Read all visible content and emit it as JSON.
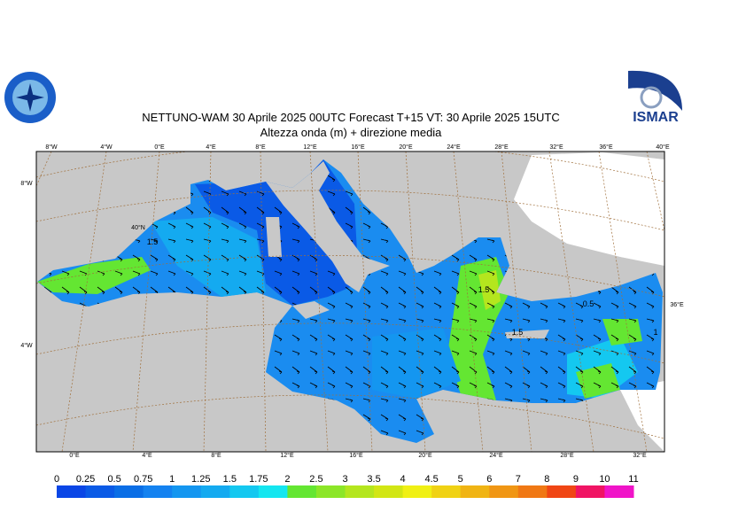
{
  "header": {
    "title": "NETTUNO-WAM  30   Aprile  2025 00UTC Forecast T+15 VT: 30   Aprile  2025 15UTC",
    "subtitle": "Altezza onda (m) + direzione media",
    "logo_right": "ISMAR"
  },
  "graticule": {
    "top": [
      "8°W",
      "4°W",
      "0°E",
      "4°E",
      "8°E",
      "12°E",
      "16°E",
      "20°E",
      "24°E",
      "28°E",
      "32°E",
      "36°E",
      "40°E"
    ],
    "bottom": [
      "0°E",
      "4°E",
      "8°E",
      "12°E",
      "16°E",
      "20°E",
      "24°E",
      "28°E",
      "32°E"
    ],
    "left": [
      "8°W",
      "40°N",
      "4°W"
    ],
    "right": [
      "36°E"
    ]
  },
  "contour_labels": [
    "1.5",
    "1.5",
    "0.5",
    "1.5",
    "1"
  ],
  "legend": {
    "levels": [
      0,
      0.25,
      0.5,
      0.75,
      1,
      1.25,
      1.5,
      1.75,
      2,
      2.5,
      3,
      3.5,
      4,
      4.5,
      5,
      6,
      7,
      8,
      9,
      10,
      11
    ],
    "colors": [
      "#0a46e6",
      "#0a5ae6",
      "#0a6ee6",
      "#1482f0",
      "#1496f0",
      "#14aaf0",
      "#14c8f0",
      "#14e6f0",
      "#64e632",
      "#8ce628",
      "#b4e61e",
      "#d2e614",
      "#f0f014",
      "#f0d214",
      "#f0b414",
      "#f09614",
      "#f07814",
      "#f04614",
      "#f01464",
      "#f014c8"
    ]
  }
}
